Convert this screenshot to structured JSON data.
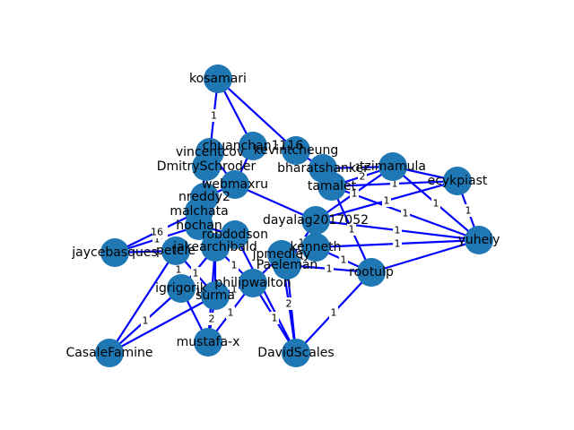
{
  "colors": {
    "node": "#1f77b4",
    "edge": "#0000ff",
    "background": "#ffffff"
  },
  "graph": {
    "nodes": [
      {
        "id": "kosamari",
        "label": "kosamari"
      },
      {
        "id": "chuanchan1116",
        "label": "chuanchan1116"
      },
      {
        "id": "vincentcov",
        "label": "vincentcov"
      },
      {
        "id": "kevintcheung",
        "label": "kevintcheung"
      },
      {
        "id": "DmitrySchroder",
        "label": "DmitrySchroder"
      },
      {
        "id": "bharatshanker",
        "label": "bharatshanker"
      },
      {
        "id": "tzimamula",
        "label": "tzimamula"
      },
      {
        "id": "ecykpiast",
        "label": "ecykpiast"
      },
      {
        "id": "webmaxru",
        "label": "webmaxru"
      },
      {
        "id": "tamalet",
        "label": "tamalet"
      },
      {
        "id": "nreddy2",
        "label": "nreddy2"
      },
      {
        "id": "malchata",
        "label": "malchata"
      },
      {
        "id": "dayalag2017052",
        "label": "dayalag2017052"
      },
      {
        "id": "yuheiy",
        "label": "yuheiy"
      },
      {
        "id": "jaycebasques",
        "label": "jaycebasques"
      },
      {
        "id": "petele",
        "label": "petele"
      },
      {
        "id": "rootulp",
        "label": "rootulp"
      },
      {
        "id": "Paeleman",
        "label": "Paeleman"
      },
      {
        "id": "igrigorik",
        "label": "igrigorik"
      },
      {
        "id": "philipwalton",
        "label": "philipwalton"
      },
      {
        "id": "surma",
        "label": "surma"
      },
      {
        "id": "mustafa-x",
        "label": "mustafa-x"
      },
      {
        "id": "DavidScales",
        "label": "DavidScales"
      },
      {
        "id": "CasaleFamine",
        "label": "CasaleFamine"
      },
      {
        "id": "jpmedley",
        "label": "jpmedley"
      },
      {
        "id": "kenneth",
        "label": "kenneth"
      },
      {
        "id": "hochan",
        "label": "hochan"
      },
      {
        "id": "jakearchibald",
        "label": "jakearchibald"
      },
      {
        "id": "robdodson",
        "label": "robdodson"
      }
    ],
    "edges": [
      {
        "source": "kosamari",
        "target": "vincentcov",
        "weight": "1"
      },
      {
        "source": "kosamari",
        "target": "chuanchan1116",
        "weight": ""
      },
      {
        "source": "kosamari",
        "target": "kevintcheung",
        "weight": ""
      },
      {
        "source": "tzimamula",
        "target": "bharatshanker",
        "weight": "1"
      },
      {
        "source": "tzimamula",
        "target": "tamalet",
        "weight": "2"
      },
      {
        "source": "tzimamula",
        "target": "dayalag2017052",
        "weight": "1"
      },
      {
        "source": "ecykpiast",
        "target": "yuheiy",
        "weight": "1"
      },
      {
        "source": "ecykpiast",
        "target": "tamalet",
        "weight": "1"
      },
      {
        "source": "ecykpiast",
        "target": "tzimamula",
        "weight": ""
      },
      {
        "source": "ecykpiast",
        "target": "dayalag2017052",
        "weight": "1"
      },
      {
        "source": "yuheiy",
        "target": "tzimamula",
        "weight": "1"
      },
      {
        "source": "yuheiy",
        "target": "tamalet",
        "weight": "1"
      },
      {
        "source": "yuheiy",
        "target": "dayalag2017052",
        "weight": "1"
      },
      {
        "source": "yuheiy",
        "target": "kenneth",
        "weight": "1"
      },
      {
        "source": "yuheiy",
        "target": "rootulp",
        "weight": ""
      },
      {
        "source": "rootulp",
        "target": "kenneth",
        "weight": "1"
      },
      {
        "source": "rootulp",
        "target": "Paeleman",
        "weight": "1"
      },
      {
        "source": "rootulp",
        "target": "tamalet",
        "weight": "1"
      },
      {
        "source": "rootulp",
        "target": "DavidScales",
        "weight": "1"
      },
      {
        "source": "jaycebasques",
        "target": "hochan",
        "weight": "1"
      },
      {
        "source": "jaycebasques",
        "target": "malchata",
        "weight": "16"
      },
      {
        "source": "jaycebasques",
        "target": "petele",
        "weight": ""
      },
      {
        "source": "igrigorik",
        "target": "petele",
        "weight": "1"
      },
      {
        "source": "igrigorik",
        "target": "surma",
        "weight": "1"
      },
      {
        "source": "igrigorik",
        "target": "jakearchibald",
        "weight": ""
      },
      {
        "source": "CasaleFamine",
        "target": "igrigorik",
        "weight": "1"
      },
      {
        "source": "CasaleFamine",
        "target": "surma",
        "weight": ""
      },
      {
        "source": "CasaleFamine",
        "target": "petele",
        "weight": ""
      },
      {
        "source": "mustafa-x",
        "target": "surma",
        "weight": "2"
      },
      {
        "source": "mustafa-x",
        "target": "philipwalton",
        "weight": "1"
      },
      {
        "source": "mustafa-x",
        "target": "igrigorik",
        "weight": ""
      },
      {
        "source": "mustafa-x",
        "target": "jakearchibald",
        "weight": ""
      },
      {
        "source": "DavidScales",
        "target": "philipwalton",
        "weight": "1"
      },
      {
        "source": "DavidScales",
        "target": "jpmedley",
        "weight": "2"
      },
      {
        "source": "DavidScales",
        "target": "Paeleman",
        "weight": ""
      },
      {
        "source": "DavidScales",
        "target": "robdodson",
        "weight": ""
      },
      {
        "source": "surma",
        "target": "philipwalton",
        "weight": "1"
      },
      {
        "source": "surma",
        "target": "petele",
        "weight": "1"
      },
      {
        "source": "surma",
        "target": "jakearchibald",
        "weight": ""
      },
      {
        "source": "philipwalton",
        "target": "jakearchibald",
        "weight": "1"
      },
      {
        "source": "philipwalton",
        "target": "jpmedley",
        "weight": ""
      },
      {
        "source": "Paeleman",
        "target": "kenneth",
        "weight": "1"
      },
      {
        "source": "Paeleman",
        "target": "dayalag2017052",
        "weight": "1"
      },
      {
        "source": "webmaxru",
        "target": "nreddy2",
        "weight": ""
      },
      {
        "source": "webmaxru",
        "target": "dayalag2017052",
        "weight": ""
      },
      {
        "source": "DmitrySchroder",
        "target": "malchata",
        "weight": ""
      },
      {
        "source": "vincentcov",
        "target": "webmaxru",
        "weight": ""
      },
      {
        "source": "bharatshanker",
        "target": "tamalet",
        "weight": ""
      },
      {
        "source": "hochan",
        "target": "robdodson",
        "weight": ""
      },
      {
        "source": "kevintcheung",
        "target": "bharatshanker",
        "weight": ""
      },
      {
        "source": "chuanchan1116",
        "target": "webmaxru",
        "weight": ""
      }
    ]
  }
}
